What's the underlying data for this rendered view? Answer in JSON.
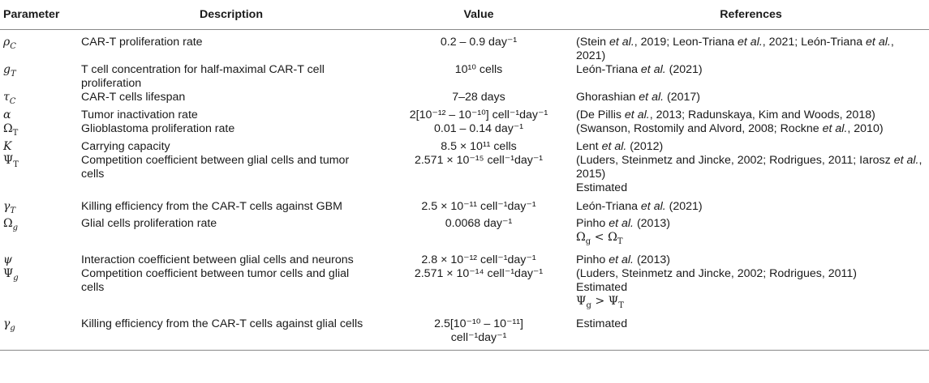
{
  "headers": [
    "Parameter",
    "Description",
    "Value",
    "References"
  ],
  "rows": [
    {
      "symbol": "ρ_C",
      "description": [
        "CAR-T proliferation rate"
      ],
      "value": [
        "0.2 – 0.9 day⁻¹"
      ],
      "references": [
        "(Stein et al., 2019; Leon-Triana et al., 2021; León-Triana et al., 2021)"
      ]
    },
    {
      "symbol": "g_T",
      "description": [
        "T cell concentration for half-maximal CAR-T cell",
        "proliferation"
      ],
      "value": [
        "10¹⁰ cells"
      ],
      "references": [
        "León-Triana et al. (2021)"
      ]
    },
    {
      "symbol": "τ_C",
      "description": [
        "CAR-T cells lifespan"
      ],
      "value": [
        "7–28 days"
      ],
      "references": [
        "Ghorashian et al. (2017)"
      ]
    },
    {
      "symbol": "α",
      "description": [
        "Tumor inactivation rate"
      ],
      "value": [
        "2[10⁻¹² – 10⁻¹⁰] cell⁻¹day⁻¹"
      ],
      "references": [
        "(De Pillis et al., 2013; Radunskaya, Kim and Woods, 2018)"
      ]
    },
    {
      "symbol": "Ω_T",
      "description": [
        "Glioblastoma proliferation rate"
      ],
      "value": [
        "0.01 – 0.14 day⁻¹"
      ],
      "references": [
        "(Swanson, Rostomily and Alvord, 2008; Rockne et al., 2010)"
      ]
    },
    {
      "symbol": "K",
      "description": [
        "Carrying capacity"
      ],
      "value": [
        "8.5 × 10¹¹ cells"
      ],
      "references": [
        "Lent et al. (2012)"
      ]
    },
    {
      "symbol": "Ψ_T",
      "description": [
        "Competition coefficient between glial cells and tumor",
        "cells"
      ],
      "value": [
        "2.571 × 10⁻¹⁵ cell⁻¹day⁻¹"
      ],
      "references": [
        "(Luders, Steinmetz and Jincke, 2002; Rodrigues, 2011; Iarosz et al.,",
        "2015)",
        "Estimated"
      ]
    },
    {
      "symbol": "γ_T",
      "description": [
        "Killing efficiency from the CAR-T cells against GBM"
      ],
      "value": [
        "2.5 × 10⁻¹¹ cell⁻¹day⁻¹"
      ],
      "references": [
        "León-Triana et al. (2021)"
      ]
    },
    {
      "symbol": "Ω_g",
      "description": [
        "Glial cells proliferation rate"
      ],
      "value": [
        "0.0068 day⁻¹"
      ],
      "references": [
        "Pinho et al. (2013)",
        "Ω_g < Ω_T"
      ]
    },
    {
      "symbol": "ψ",
      "description": [
        "Interaction coefficient between glial cells and neurons"
      ],
      "value": [
        "2.8 × 10⁻¹² cell⁻¹day⁻¹"
      ],
      "references": [
        "Pinho et al. (2013)"
      ]
    },
    {
      "symbol": "Ψ_g",
      "description": [
        "Competition coefficient between tumor cells and glial",
        "cells"
      ],
      "value": [
        "2.571 × 10⁻¹⁴ cell⁻¹day⁻¹"
      ],
      "references": [
        "(Luders, Steinmetz and Jincke, 2002; Rodrigues, 2011)",
        "Estimated",
        "Ψ_g > Ψ_T"
      ]
    },
    {
      "symbol": "γ_g",
      "description": [
        "Killing efficiency from the CAR-T cells against glial cells"
      ],
      "value": [
        "2.5[10⁻¹⁰ – 10⁻¹¹]",
        "cell⁻¹day⁻¹"
      ],
      "references": [
        "Estimated"
      ]
    }
  ]
}
